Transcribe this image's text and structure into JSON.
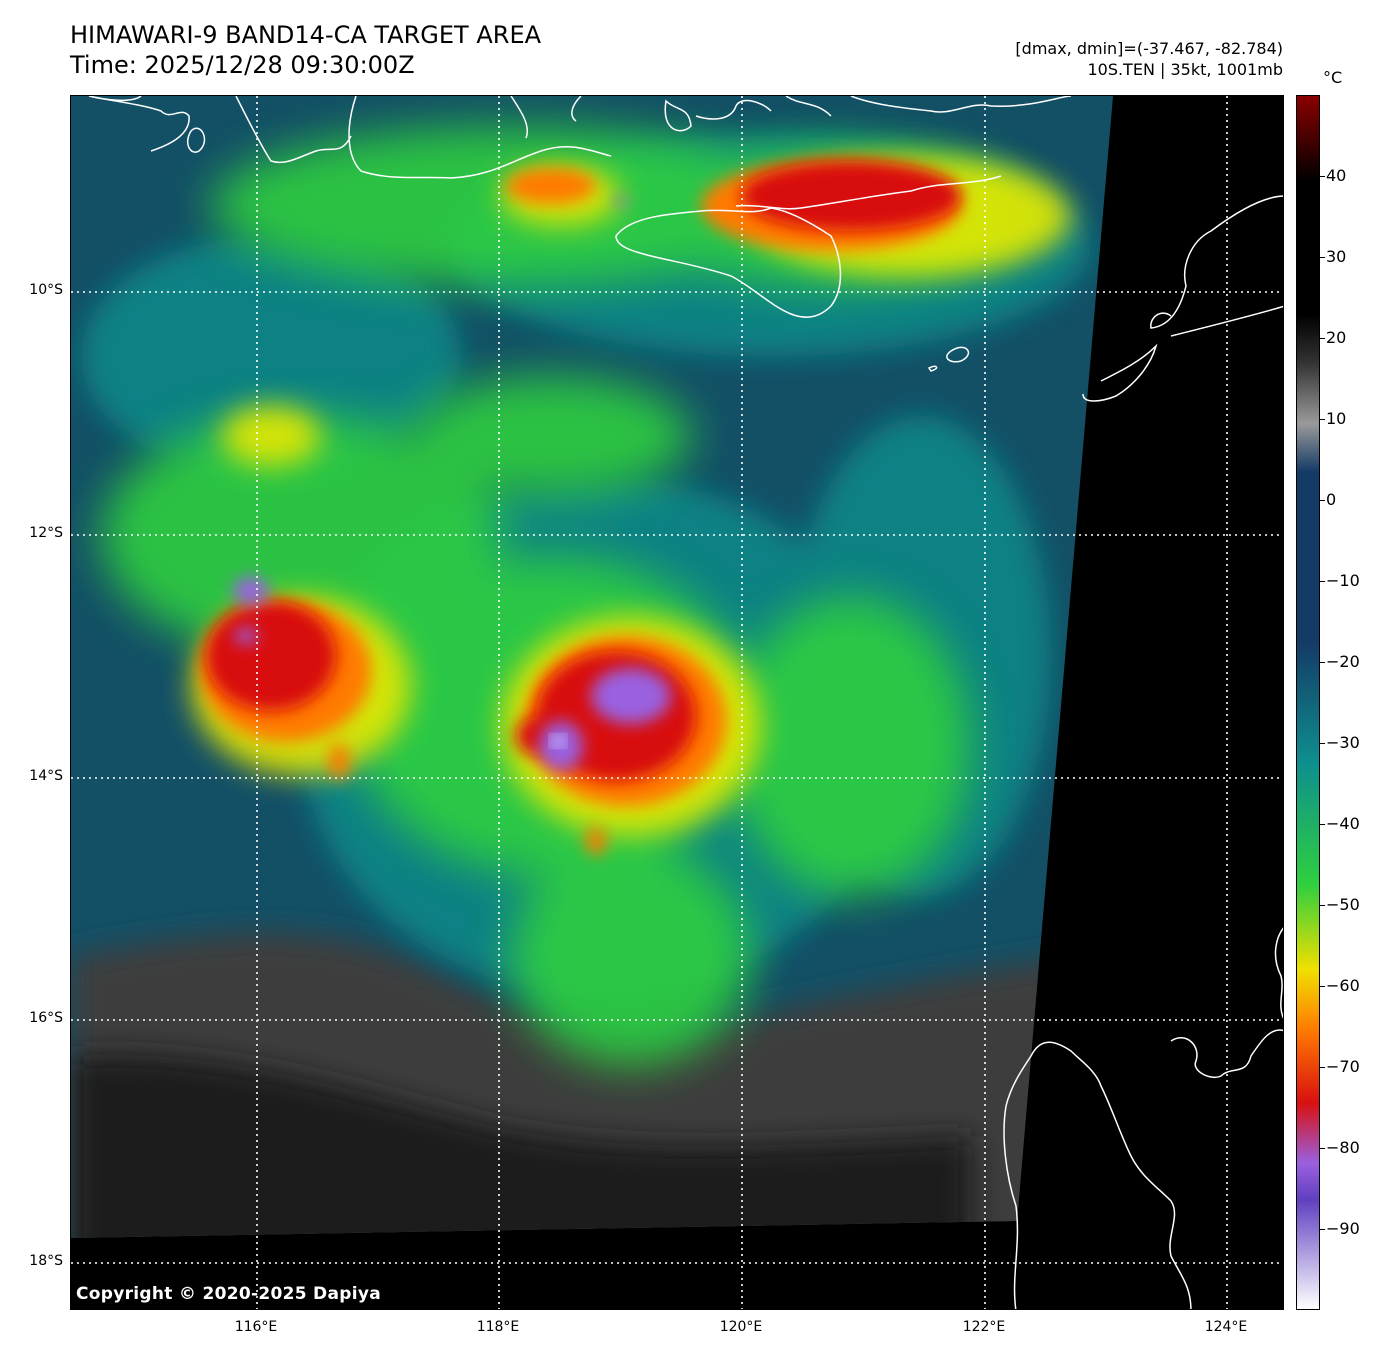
{
  "header": {
    "title_line1": "HIMAWARI-9 BAND14-CA TARGET AREA",
    "title_line2": "Time: 2025/12/28 09:30:00Z",
    "info_line1": "[dmax, dmin]=(-37.467, -82.784)",
    "info_line2": "10S.TEN | 35kt, 1001mb"
  },
  "map": {
    "copyright": "Copyright © 2020-2025 Dapiya",
    "lat_labels": [
      "10°S",
      "12°S",
      "14°S",
      "16°S",
      "18°S"
    ],
    "lon_labels": [
      "116°E",
      "118°E",
      "120°E",
      "122°E",
      "124°E"
    ]
  },
  "colorbar": {
    "unit": "°C",
    "ticks": [
      "40",
      "30",
      "20",
      "10",
      "0",
      "−10",
      "−20",
      "−30",
      "−40",
      "−50",
      "−60",
      "−70",
      "−80",
      "−90"
    ],
    "range": [
      -100,
      50
    ],
    "colors": {
      "warm_top": "#8b0000",
      "hot": "#000000",
      "gray": "#9a9a9a",
      "navy": "#143a66",
      "teal": "#0e8f8f",
      "green": "#2fcf3f",
      "yellow": "#f0e000",
      "orange": "#ff7a00",
      "red": "#d81010",
      "purple": "#9a60e0",
      "white": "#ffffff"
    }
  }
}
